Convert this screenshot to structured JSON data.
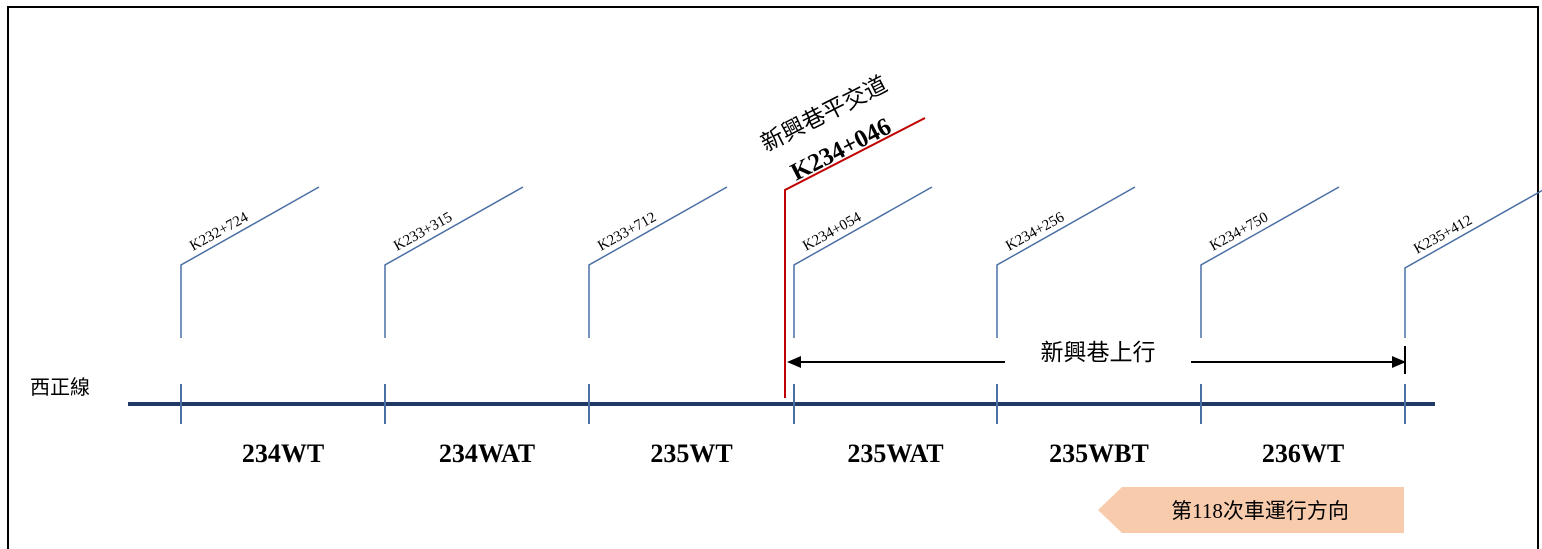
{
  "diagram": {
    "track_name": "西正線",
    "markers": [
      {
        "km": "K232+724"
      },
      {
        "km": "K233+315"
      },
      {
        "km": "K233+712"
      },
      {
        "km": "K234+054"
      },
      {
        "km": "K234+256"
      },
      {
        "km": "K234+750"
      },
      {
        "km": "K235+412"
      }
    ],
    "crossing": {
      "name": "新興巷平交道",
      "km": "K234+046"
    },
    "circuits": [
      "234WT",
      "234WAT",
      "235WT",
      "235WAT",
      "235WBT",
      "236WT"
    ],
    "span": {
      "label": "新興巷上行"
    },
    "direction": {
      "label": "第118次車運行方向"
    }
  },
  "colors": {
    "track": "#1f3864",
    "marker": "#4a6fa5",
    "crossing": "#c00000",
    "arrow_fill": "#f8cbad",
    "frame": "#000000"
  }
}
